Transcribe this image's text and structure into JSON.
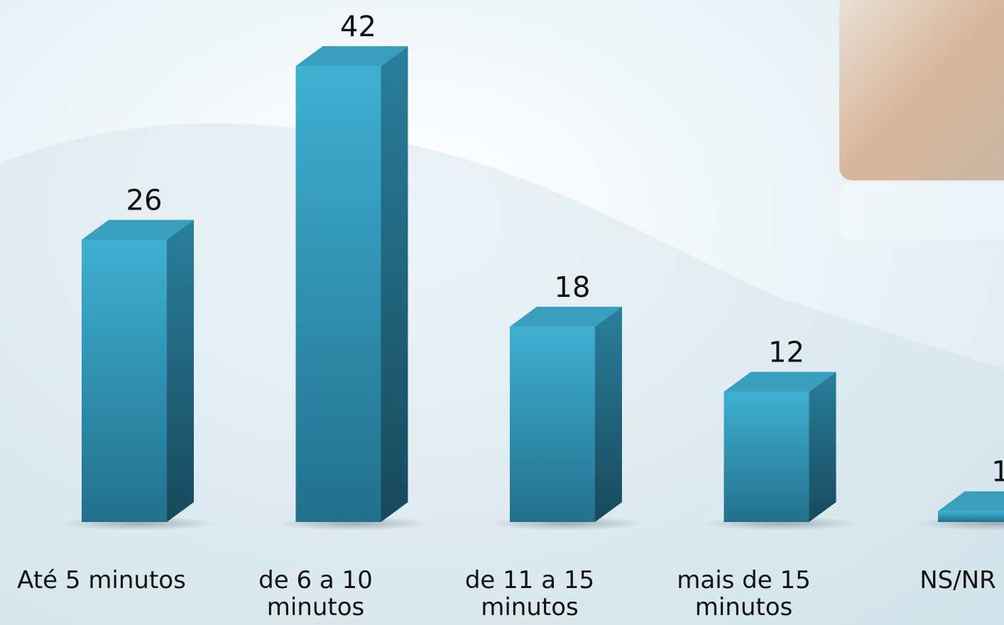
{
  "chart_data": {
    "type": "bar3d",
    "categories": [
      "Até 5 minutos",
      "de 6 a 10 minutos",
      "de 11 a 15 minutos",
      "mais de 15 minutos",
      "NS/NR"
    ],
    "values": [
      26,
      42,
      18,
      12,
      1
    ],
    "color": "#2f93b3"
  }
}
